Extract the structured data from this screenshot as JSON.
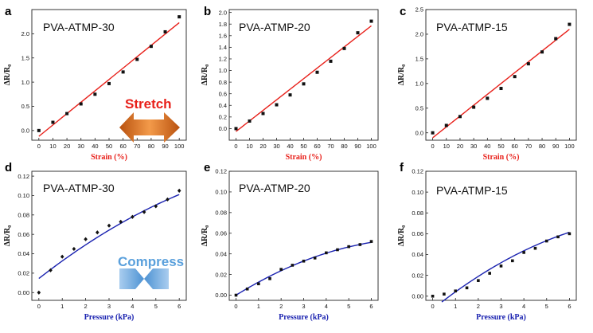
{
  "colors": {
    "fit_top": "#e8201a",
    "fit_bottom": "#1a22b0",
    "xlabel_top": "#e8201a",
    "xlabel_bottom": "#1a22b0",
    "points": "#111111",
    "stretch_arrow": "#e0701e",
    "compress_arrow": "#5aa0dc"
  },
  "annotations": {
    "stretch": "Stretch",
    "compress": "Compress"
  },
  "chart_data": [
    {
      "letter": "a",
      "label": "PVA-ATMP-30",
      "type": "scatter",
      "xlabel": "Strain (%)",
      "ylabel": "ΔR/R₀",
      "xlim": [
        -5,
        105
      ],
      "ylim": [
        -0.2,
        2.5
      ],
      "xticks": [
        0,
        10,
        20,
        30,
        40,
        50,
        60,
        70,
        80,
        90,
        100
      ],
      "yticks": [
        0.0,
        0.5,
        1.0,
        1.5,
        2.0
      ],
      "tick_labels_y": [
        "0.0",
        "0.5",
        "1.0",
        "1.5",
        "2.0"
      ],
      "x": [
        0,
        10,
        20,
        30,
        40,
        50,
        60,
        70,
        80,
        90,
        100
      ],
      "y": [
        0.0,
        0.17,
        0.35,
        0.55,
        0.75,
        0.97,
        1.21,
        1.47,
        1.74,
        2.04,
        2.35
      ],
      "fit": {
        "kind": "linear",
        "slope": 0.0235,
        "intercept": -0.12,
        "x_range": [
          0,
          100
        ]
      }
    },
    {
      "letter": "b",
      "label": "PVA-ATMP-20",
      "type": "scatter",
      "xlabel": "Strain (%)",
      "ylabel": "ΔR/R₀",
      "xlim": [
        -5,
        105
      ],
      "ylim": [
        -0.2,
        2.05
      ],
      "xticks": [
        0,
        10,
        20,
        30,
        40,
        50,
        60,
        70,
        80,
        90,
        100
      ],
      "yticks": [
        0.0,
        0.2,
        0.4,
        0.6,
        0.8,
        1.0,
        1.2,
        1.4,
        1.6,
        1.8,
        2.0
      ],
      "tick_labels_y": [
        "0.0",
        "0.2",
        "0.4",
        "0.6",
        "0.8",
        "1.0",
        "1.2",
        "1.4",
        "1.6",
        "1.8",
        "2.0"
      ],
      "x": [
        0,
        10,
        20,
        30,
        40,
        50,
        60,
        70,
        80,
        90,
        100
      ],
      "y": [
        0.0,
        0.13,
        0.26,
        0.41,
        0.58,
        0.77,
        0.97,
        1.16,
        1.38,
        1.65,
        1.85
      ],
      "fit": {
        "kind": "linear",
        "slope": 0.0182,
        "intercept": -0.05,
        "x_range": [
          0,
          100
        ]
      }
    },
    {
      "letter": "c",
      "label": "PVA-ATMP-15",
      "type": "scatter",
      "xlabel": "Strain (%)",
      "ylabel": "ΔR/R₀",
      "xlim": [
        -5,
        105
      ],
      "ylim": [
        -0.15,
        2.5
      ],
      "xticks": [
        0,
        10,
        20,
        30,
        40,
        50,
        60,
        70,
        80,
        90,
        100
      ],
      "yticks": [
        0.0,
        0.5,
        1.0,
        1.5,
        2.0,
        2.5
      ],
      "tick_labels_y": [
        "0.0",
        "0.5",
        "1.0",
        "1.5",
        "2.0",
        "2.5"
      ],
      "x": [
        0,
        10,
        20,
        30,
        40,
        50,
        60,
        70,
        80,
        90,
        100
      ],
      "y": [
        0.0,
        0.15,
        0.33,
        0.52,
        0.7,
        0.9,
        1.14,
        1.4,
        1.64,
        1.91,
        2.2
      ],
      "fit": {
        "kind": "linear",
        "slope": 0.022,
        "intercept": -0.1,
        "x_range": [
          0,
          100
        ]
      }
    },
    {
      "letter": "d",
      "label": "PVA-ATMP-30",
      "type": "scatter",
      "xlabel": "Pressure (kPa)",
      "ylabel": "ΔR/R₀",
      "xlim": [
        -0.3,
        6.3
      ],
      "ylim": [
        -0.008,
        0.125
      ],
      "xticks": [
        0,
        1,
        2,
        3,
        4,
        5,
        6
      ],
      "yticks": [
        0.0,
        0.02,
        0.04,
        0.06,
        0.08,
        0.1,
        0.12
      ],
      "tick_labels_y": [
        "0.00",
        "0.02",
        "0.04",
        "0.06",
        "0.08",
        "0.10",
        "0.12"
      ],
      "x": [
        0,
        0.5,
        1.0,
        1.5,
        2.0,
        2.5,
        3.0,
        3.5,
        4.0,
        4.5,
        5.0,
        5.5,
        6.0
      ],
      "y": [
        0.0,
        0.023,
        0.037,
        0.045,
        0.055,
        0.062,
        0.069,
        0.073,
        0.078,
        0.083,
        0.089,
        0.096,
        0.105
      ],
      "fit": {
        "kind": "quadratic",
        "coef": [
          0.0145,
          0.0188,
          -0.00073
        ],
        "x_range": [
          0,
          6
        ]
      }
    },
    {
      "letter": "e",
      "label": "PVA-ATMP-20",
      "type": "scatter",
      "xlabel": "Pressure (kPa)",
      "ylabel": "ΔR/R₀",
      "xlim": [
        -0.3,
        6.3
      ],
      "ylim": [
        -0.005,
        0.12
      ],
      "xticks": [
        0,
        1,
        2,
        3,
        4,
        5,
        6
      ],
      "yticks": [
        0.0,
        0.02,
        0.04,
        0.06,
        0.08,
        0.1,
        0.12
      ],
      "tick_labels_y": [
        "0.00",
        "0.02",
        "0.04",
        "0.06",
        "0.08",
        "0.10",
        "0.12"
      ],
      "x": [
        0,
        0.5,
        1.0,
        1.5,
        2.0,
        2.5,
        3.0,
        3.5,
        4.0,
        4.5,
        5.0,
        5.5,
        6.0
      ],
      "y": [
        0.0,
        0.006,
        0.011,
        0.016,
        0.025,
        0.029,
        0.033,
        0.036,
        0.041,
        0.044,
        0.047,
        0.049,
        0.052
      ],
      "fit": {
        "kind": "quadratic",
        "coef": [
          0.0,
          0.0135,
          -0.00083
        ],
        "x_range": [
          0,
          6
        ]
      }
    },
    {
      "letter": "f",
      "label": "PVA-ATMP-15",
      "type": "scatter",
      "xlabel": "Pressure (kPa)",
      "ylabel": "ΔR/R₀",
      "xlim": [
        -0.3,
        6.3
      ],
      "ylim": [
        -0.004,
        0.12
      ],
      "xticks": [
        0,
        1,
        2,
        3,
        4,
        5,
        6
      ],
      "yticks": [
        0.0,
        0.02,
        0.04,
        0.06,
        0.08,
        0.1,
        0.12
      ],
      "tick_labels_y": [
        "0.00",
        "0.02",
        "0.04",
        "0.06",
        "0.08",
        "0.10",
        "0.12"
      ],
      "x": [
        0,
        0.5,
        1.0,
        1.5,
        2.0,
        2.5,
        3.0,
        3.5,
        4.0,
        4.5,
        5.0,
        5.5,
        6.0
      ],
      "y": [
        0.0,
        0.002,
        0.005,
        0.008,
        0.015,
        0.022,
        0.029,
        0.034,
        0.042,
        0.046,
        0.053,
        0.057,
        0.06
      ],
      "fit": {
        "kind": "quadratic",
        "coef": [
          -0.0124,
          0.0174,
          -0.00085
        ],
        "x_range": [
          0.4,
          6
        ]
      }
    }
  ]
}
